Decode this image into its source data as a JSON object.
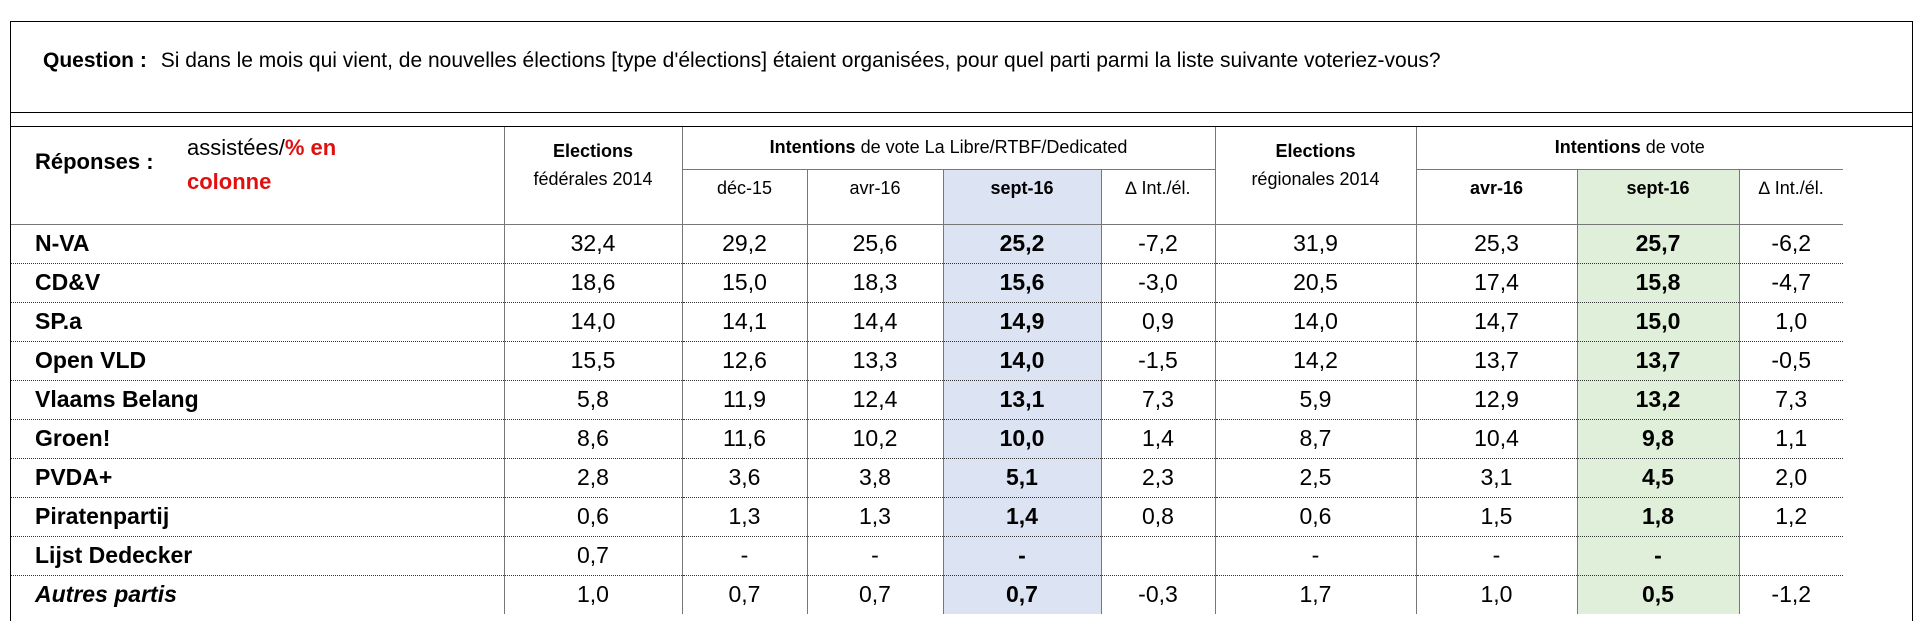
{
  "question": {
    "label": "Question :",
    "text": "Si dans le mois qui vient, de nouvelles élections [type d'élections] étaient organisées, pour quel parti parmi la liste suivante voteriez-vous?"
  },
  "header": {
    "responses_label": "Réponses :",
    "responses_sub_black": "assistées/",
    "responses_sub_red1": "% en",
    "responses_sub_red2": "colonne",
    "fed_title": "Elections",
    "fed_sub": "fédérales 2014",
    "intentions_bold": "Intentions",
    "intentions_rest": " de vote La Libre/RTBF/Dedicated",
    "reg_title": "Elections",
    "reg_sub": "régionales 2014",
    "intentions2_bold": "Intentions",
    "intentions2_rest": " de vote",
    "cols": {
      "dec15": "déc-15",
      "avr16": "avr-16",
      "sept16": "sept-16",
      "delta": "∆ Int./él.",
      "avr16_reg": "avr-16",
      "sept16_reg": "sept-16",
      "delta_reg": "∆ Int./él."
    }
  },
  "rows": [
    {
      "party": "N-VA",
      "fed2014": "32,4",
      "dec15": "29,2",
      "avr16": "25,6",
      "sept16": "25,2",
      "delta": "-7,2",
      "reg2014": "31,9",
      "avr16r": "25,3",
      "sept16r": "25,7",
      "deltar": "-6,2"
    },
    {
      "party": "CD&V",
      "fed2014": "18,6",
      "dec15": "15,0",
      "avr16": "18,3",
      "sept16": "15,6",
      "delta": "-3,0",
      "reg2014": "20,5",
      "avr16r": "17,4",
      "sept16r": "15,8",
      "deltar": "-4,7"
    },
    {
      "party": "SP.a",
      "fed2014": "14,0",
      "dec15": "14,1",
      "avr16": "14,4",
      "sept16": "14,9",
      "delta": "0,9",
      "reg2014": "14,0",
      "avr16r": "14,7",
      "sept16r": "15,0",
      "deltar": "1,0"
    },
    {
      "party": "Open VLD",
      "fed2014": "15,5",
      "dec15": "12,6",
      "avr16": "13,3",
      "sept16": "14,0",
      "delta": "-1,5",
      "reg2014": "14,2",
      "avr16r": "13,7",
      "sept16r": "13,7",
      "deltar": "-0,5"
    },
    {
      "party": "Vlaams Belang",
      "fed2014": "5,8",
      "dec15": "11,9",
      "avr16": "12,4",
      "sept16": "13,1",
      "delta": "7,3",
      "reg2014": "5,9",
      "avr16r": "12,9",
      "sept16r": "13,2",
      "deltar": "7,3"
    },
    {
      "party": "Groen!",
      "fed2014": "8,6",
      "dec15": "11,6",
      "avr16": "10,2",
      "sept16": "10,0",
      "delta": "1,4",
      "reg2014": "8,7",
      "avr16r": "10,4",
      "sept16r": "9,8",
      "deltar": "1,1"
    },
    {
      "party": "PVDA+",
      "fed2014": "2,8",
      "dec15": "3,6",
      "avr16": "3,8",
      "sept16": "5,1",
      "delta": "2,3",
      "reg2014": "2,5",
      "avr16r": "3,1",
      "sept16r": "4,5",
      "deltar": "2,0"
    },
    {
      "party": "Piratenpartij",
      "fed2014": "0,6",
      "dec15": "1,3",
      "avr16": "1,3",
      "sept16": "1,4",
      "delta": "0,8",
      "reg2014": "0,6",
      "avr16r": "1,5",
      "sept16r": "1,8",
      "deltar": "1,2"
    },
    {
      "party": "Lijst Dedecker",
      "fed2014": "0,7",
      "dec15": "-",
      "avr16": "-",
      "sept16": "-",
      "delta": "",
      "reg2014": "-",
      "avr16r": "-",
      "sept16r": "-",
      "deltar": ""
    },
    {
      "party": "Autres partis",
      "fed2014": "1,0",
      "dec15": "0,7",
      "avr16": "0,7",
      "sept16": "0,7",
      "delta": "-0,3",
      "reg2014": "1,7",
      "avr16r": "1,0",
      "sept16r": "0,5",
      "deltar": "-1,2",
      "italic": true
    }
  ]
}
